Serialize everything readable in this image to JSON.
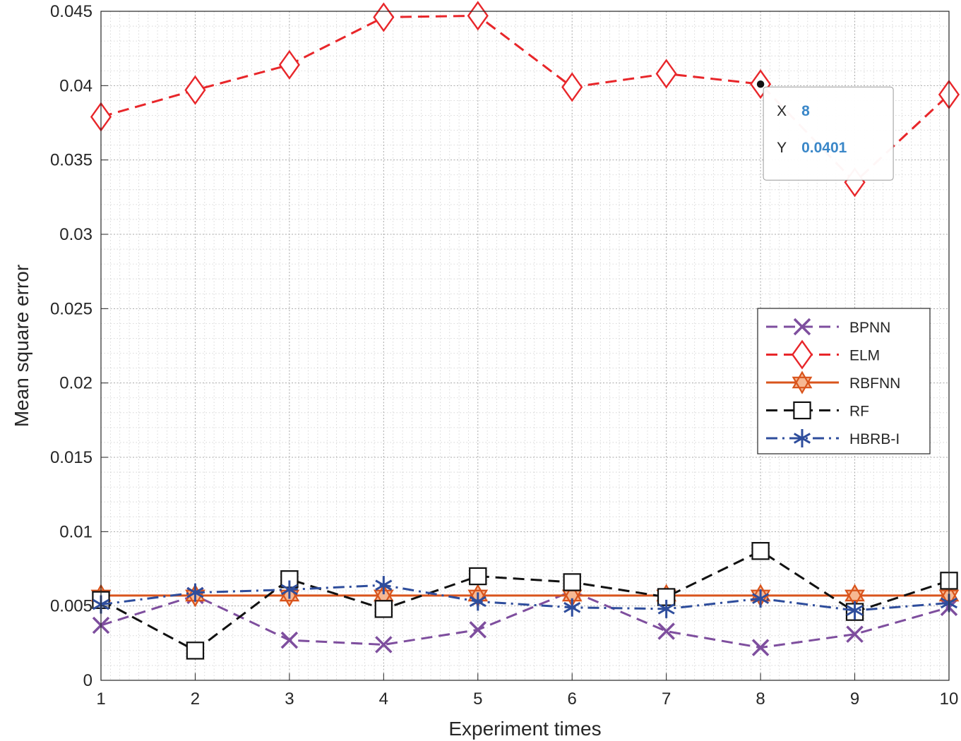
{
  "chart_data": {
    "type": "line",
    "title": "",
    "xlabel": "Experiment times",
    "ylabel": "Mean square error",
    "xlim": [
      1,
      10
    ],
    "ylim": [
      0,
      0.045
    ],
    "xticks": [
      "1",
      "2",
      "3",
      "4",
      "5",
      "6",
      "7",
      "8",
      "9",
      "10"
    ],
    "yticks": [
      "0",
      "0.005",
      "0.01",
      "0.015",
      "0.02",
      "0.025",
      "0.03",
      "0.035",
      "0.04",
      "0.045"
    ],
    "grid": "major and minor, dotted",
    "legend_position": "right, middle",
    "x": [
      1,
      2,
      3,
      4,
      5,
      6,
      7,
      8,
      9,
      10
    ],
    "series": [
      {
        "name": "BPNN",
        "color": "#7e4e9e",
        "marker": "x",
        "line": "dashed",
        "values": [
          0.0037,
          0.0057,
          0.0027,
          0.0024,
          0.0034,
          0.006,
          0.0033,
          0.0022,
          0.0031,
          0.0049
        ]
      },
      {
        "name": "ELM",
        "color": "#e8262a",
        "marker": "diamond",
        "line": "dashed",
        "values": [
          0.0379,
          0.0397,
          0.0414,
          0.0446,
          0.0447,
          0.0399,
          0.0408,
          0.0401,
          0.0335,
          0.0394
        ]
      },
      {
        "name": "RBFNN",
        "color": "#d9541c",
        "marker": "hexagram",
        "line": "solid",
        "values": [
          0.0057,
          0.0057,
          0.0057,
          0.0057,
          0.0057,
          0.0057,
          0.0057,
          0.0057,
          0.0057,
          0.0057
        ]
      },
      {
        "name": "RF",
        "color": "#111111",
        "marker": "square",
        "line": "dashed",
        "values": [
          0.0054,
          0.002,
          0.0068,
          0.0048,
          0.007,
          0.0066,
          0.0056,
          0.0087,
          0.0046,
          0.0067
        ]
      },
      {
        "name": "HBRB-I",
        "color": "#2e4d9c",
        "marker": "asterisk",
        "line": "dashdot",
        "values": [
          0.0051,
          0.0059,
          0.0061,
          0.0064,
          0.0053,
          0.0049,
          0.0048,
          0.0055,
          0.0047,
          0.0052
        ]
      }
    ],
    "datatip": {
      "x_label": "X",
      "x_value": "8",
      "y_label": "Y",
      "y_value": "0.0401",
      "x": 8,
      "y": 0.0401
    }
  }
}
